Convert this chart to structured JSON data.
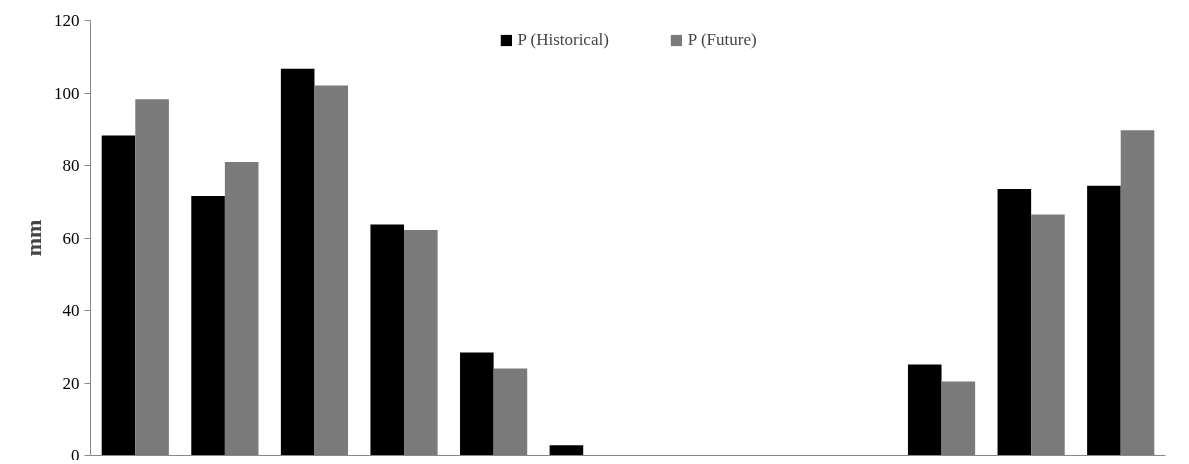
{
  "chart_data": {
    "type": "bar",
    "ylabel": "mm",
    "categories": [
      null,
      null,
      null,
      null,
      null,
      null,
      null,
      null,
      null,
      null,
      null,
      null
    ],
    "series": [
      {
        "name": "P (Historical)",
        "color": "#000000",
        "values": [
          88.3,
          71.6,
          106.7,
          63.7,
          28.4,
          2.8,
          0,
          0,
          0,
          25.1,
          73.5,
          74.4
        ]
      },
      {
        "name": "P (Future)",
        "color": "#7a7a7a",
        "values": [
          98.3,
          81.0,
          102.1,
          62.2,
          24.0,
          0,
          0,
          0,
          0,
          20.4,
          66.5,
          89.7
        ]
      }
    ],
    "ylim": [
      0,
      120
    ],
    "yticks": [
      0,
      20,
      40,
      60,
      80,
      100,
      120
    ],
    "grid": false,
    "legend": "top"
  }
}
